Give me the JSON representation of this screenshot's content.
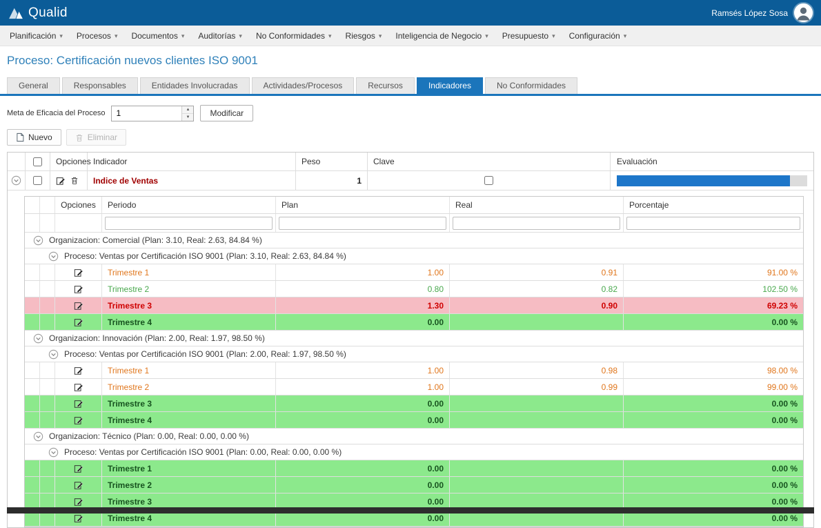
{
  "topbar": {
    "brand": "Qualid",
    "user_name": "Ramsés López Sosa"
  },
  "menu": {
    "items": [
      {
        "label": "Planificación"
      },
      {
        "label": "Procesos"
      },
      {
        "label": "Documentos"
      },
      {
        "label": "Auditorías"
      },
      {
        "label": "No Conformidades"
      },
      {
        "label": "Riesgos"
      },
      {
        "label": "Inteligencia de Negocio"
      },
      {
        "label": "Presupuesto"
      },
      {
        "label": "Configuración"
      }
    ]
  },
  "page": {
    "title": "Proceso: Certificación nuevos clientes ISO 9001"
  },
  "tabs": [
    {
      "label": "General",
      "active": false
    },
    {
      "label": "Responsables",
      "active": false
    },
    {
      "label": "Entidades Involucradas",
      "active": false
    },
    {
      "label": "Actividades/Procesos",
      "active": false
    },
    {
      "label": "Recursos",
      "active": false
    },
    {
      "label": "Indicadores",
      "active": true
    },
    {
      "label": "No Conformidades",
      "active": false
    }
  ],
  "meta": {
    "label": "Meta de Eficacia del Proceso",
    "value": "1",
    "modify_button": "Modificar"
  },
  "toolbar": {
    "new_button": "Nuevo",
    "delete_button": "Eliminar"
  },
  "indicators_grid": {
    "columns": [
      "Opciones",
      "Indicador",
      "Peso",
      "Clave",
      "Evaluación"
    ],
    "row": {
      "indicador": "Indice de Ventas",
      "peso": "1",
      "clave_checked": false,
      "evaluacion_percent": 91
    }
  },
  "periods_grid": {
    "columns": [
      "Opciones",
      "Periodo",
      "Plan",
      "Real",
      "Porcentaje"
    ],
    "groups": [
      {
        "organizacion": "Organizacion: Comercial (Plan: 3.10, Real: 2.63, 84.84 %)",
        "proceso": "Proceso: Ventas por Certificación ISO 9001 (Plan: 3.10, Real: 2.63, 84.84 %)",
        "rows": [
          {
            "periodo": "Trimestre 1",
            "plan": "1.00",
            "real": "0.91",
            "porcentaje": "91.00 %",
            "state": "warn"
          },
          {
            "periodo": "Trimestre 2",
            "plan": "0.80",
            "real": "0.82",
            "porcentaje": "102.50 %",
            "state": "ok"
          },
          {
            "periodo": "Trimestre 3",
            "plan": "1.30",
            "real": "0.90",
            "porcentaje": "69.23 %",
            "state": "danger"
          },
          {
            "periodo": "Trimestre 4",
            "plan": "0.00",
            "real": "",
            "porcentaje": "0.00 %",
            "state": "future"
          }
        ]
      },
      {
        "organizacion": "Organizacion: Innovación (Plan: 2.00, Real: 1.97, 98.50 %)",
        "proceso": "Proceso: Ventas por Certificación ISO 9001 (Plan: 2.00, Real: 1.97, 98.50 %)",
        "rows": [
          {
            "periodo": "Trimestre 1",
            "plan": "1.00",
            "real": "0.98",
            "porcentaje": "98.00 %",
            "state": "warn"
          },
          {
            "periodo": "Trimestre 2",
            "plan": "1.00",
            "real": "0.99",
            "porcentaje": "99.00 %",
            "state": "warn"
          },
          {
            "periodo": "Trimestre 3",
            "plan": "0.00",
            "real": "",
            "porcentaje": "0.00 %",
            "state": "future"
          },
          {
            "periodo": "Trimestre 4",
            "plan": "0.00",
            "real": "",
            "porcentaje": "0.00 %",
            "state": "future"
          }
        ]
      },
      {
        "organizacion": "Organizacion: Técnico (Plan: 0.00, Real: 0.00, 0.00 %)",
        "proceso": "Proceso: Ventas por Certificación ISO 9001 (Plan: 0.00, Real: 0.00, 0.00 %)",
        "rows": [
          {
            "periodo": "Trimestre 1",
            "plan": "0.00",
            "real": "",
            "porcentaje": "0.00 %",
            "state": "future"
          },
          {
            "periodo": "Trimestre 2",
            "plan": "0.00",
            "real": "",
            "porcentaje": "0.00 %",
            "state": "future"
          },
          {
            "periodo": "Trimestre 3",
            "plan": "0.00",
            "real": "",
            "porcentaje": "0.00 %",
            "state": "future"
          },
          {
            "periodo": "Trimestre 4",
            "plan": "0.00",
            "real": "",
            "porcentaje": "0.00 %",
            "state": "future"
          }
        ]
      }
    ]
  },
  "colors": {
    "topbar": "#0b5c98",
    "accent": "#1b75bb",
    "progress_fill": "#1d76c9",
    "indicator_name": "#a00000",
    "warning_text": "#e0761c",
    "ok_text": "#49a84d",
    "danger_text": "#cf0000",
    "danger_bg": "#f6bcc3",
    "future_bg": "#8ce98c",
    "future_text": "#17531f"
  }
}
